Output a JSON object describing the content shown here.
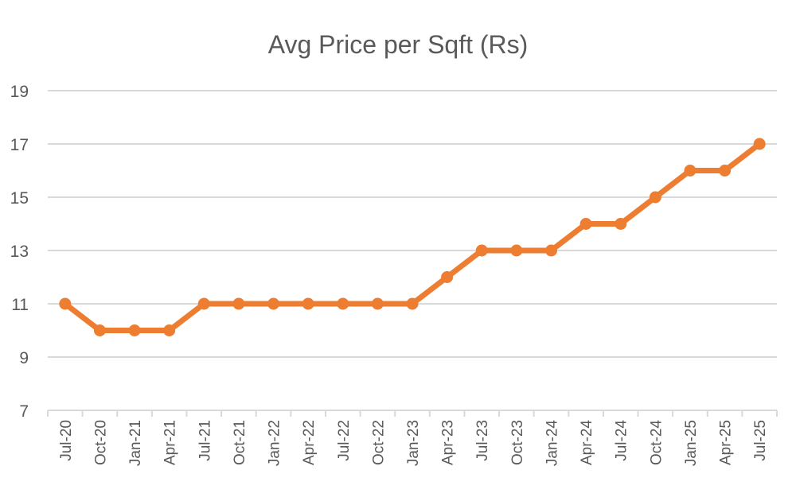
{
  "chart_data": {
    "type": "line",
    "title": "Avg Price per Sqft (Rs)",
    "xlabel": "",
    "ylabel": "",
    "ylim": [
      7,
      19
    ],
    "yticks": [
      7,
      9,
      11,
      13,
      15,
      17,
      19
    ],
    "grid": true,
    "legend": "none",
    "categories": [
      "Jul-20",
      "Oct-20",
      "Jan-21",
      "Apr-21",
      "Jul-21",
      "Oct-21",
      "Jan-22",
      "Apr-22",
      "Jul-22",
      "Oct-22",
      "Jan-23",
      "Apr-23",
      "Jul-23",
      "Oct-23",
      "Jan-24",
      "Apr-24",
      "Jul-24",
      "Oct-24",
      "Jan-25",
      "Apr-25",
      "Jul-25"
    ],
    "series": [
      {
        "name": "Avg Price per Sqft (Rs)",
        "color": "#ED7D31",
        "values": [
          11,
          10,
          10,
          10,
          11,
          11,
          11,
          11,
          11,
          11,
          11,
          12,
          13,
          13,
          13,
          14,
          14,
          15,
          16,
          16,
          17
        ]
      }
    ]
  },
  "colors": {
    "line": "#ED7D31",
    "grid": "#D9D9D9",
    "text": "#595959"
  }
}
